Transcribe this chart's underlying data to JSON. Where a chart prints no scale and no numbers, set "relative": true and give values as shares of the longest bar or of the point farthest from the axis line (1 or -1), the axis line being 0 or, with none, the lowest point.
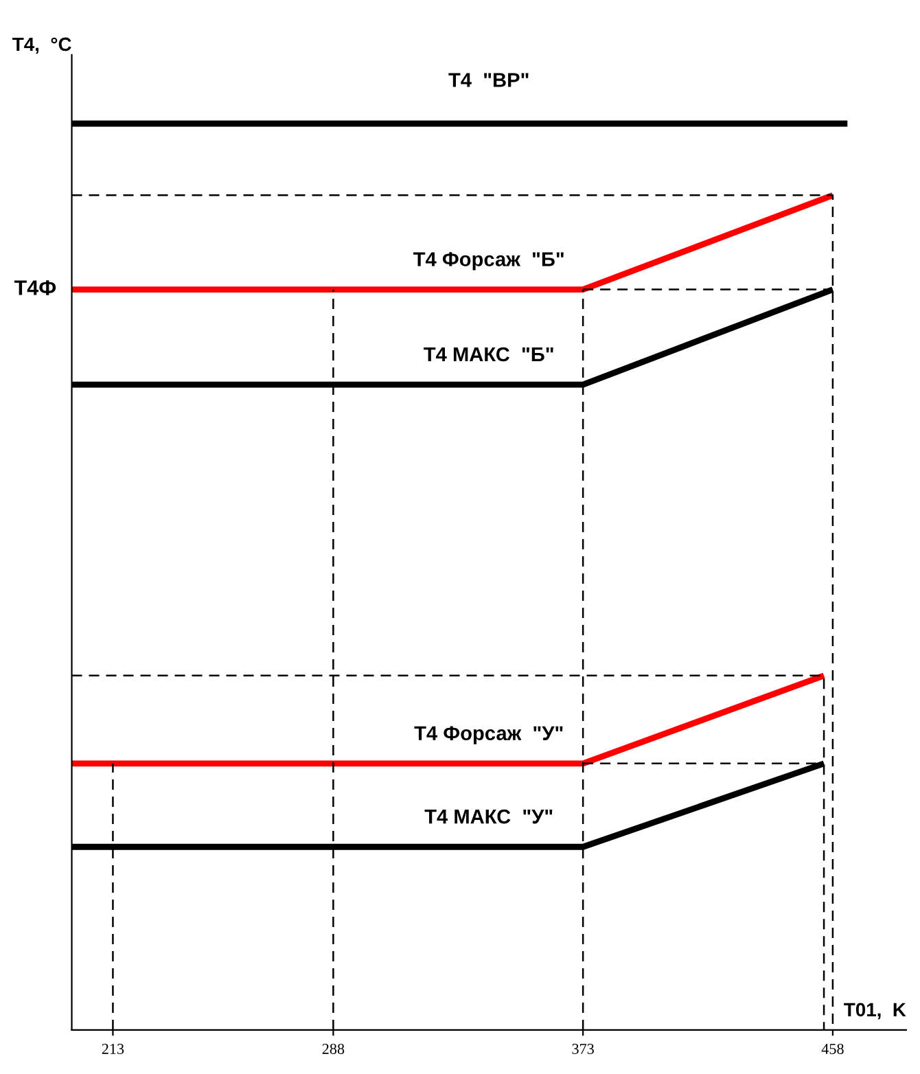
{
  "chart_data": {
    "type": "line",
    "relative": true,
    "ylabel": "T4,  °C",
    "xlabel": "T01,  K",
    "xlim": [
      199,
      483
    ],
    "xticks": [
      213,
      288,
      373,
      458
    ],
    "grid": false,
    "legend": false,
    "marker": "none",
    "series": [
      {
        "name": "T4  \"ВР\"",
        "color": "#000000",
        "x": [
          199,
          463
        ],
        "values": [
          1.0,
          1.0
        ]
      },
      {
        "name": "T4 Форсаж  \"Б\"",
        "color": "#ff0000",
        "x": [
          199,
          373,
          458
        ],
        "values": [
          0.817,
          0.817,
          0.921
        ]
      },
      {
        "name": "T4 МАКС  \"Б\"",
        "color": "#000000",
        "x": [
          199,
          373,
          458
        ],
        "values": [
          0.712,
          0.712,
          0.817
        ]
      },
      {
        "name": "T4 Форсаж  \"У\"",
        "color": "#ff0000",
        "x": [
          199,
          373,
          455
        ],
        "values": [
          0.294,
          0.294,
          0.391
        ]
      },
      {
        "name": "T4 МАКС  \"У\"",
        "color": "#000000",
        "x": [
          199,
          373,
          455
        ],
        "values": [
          0.202,
          0.202,
          0.294
        ]
      },
      {
        "color": "#000000",
        "line_style": "dashed",
        "x": [
          199,
          458,
          458
        ],
        "values": [
          0.921,
          0.921,
          0
        ]
      },
      {
        "color": "#000000",
        "line_style": "dashed",
        "x": [
          373,
          458
        ],
        "values": [
          0.817,
          0.817
        ]
      },
      {
        "color": "#000000",
        "line_style": "dashed",
        "x": [
          199,
          455,
          455
        ],
        "values": [
          0.391,
          0.391,
          0
        ]
      },
      {
        "color": "#000000",
        "line_style": "dashed",
        "x": [
          373,
          455
        ],
        "values": [
          0.294,
          0.294
        ]
      },
      {
        "color": "#000000",
        "line_style": "dashed",
        "x": [
          213,
          213
        ],
        "values": [
          0,
          0.294
        ]
      },
      {
        "color": "#000000",
        "line_style": "dashed",
        "x": [
          288,
          288
        ],
        "values": [
          0,
          0.817
        ]
      },
      {
        "color": "#000000",
        "line_style": "dashed",
        "x": [
          373,
          373
        ],
        "values": [
          0,
          0.817
        ]
      }
    ],
    "annotations": [
      {
        "text": "T4Ф",
        "x": 199,
        "y": 0.817
      }
    ]
  }
}
